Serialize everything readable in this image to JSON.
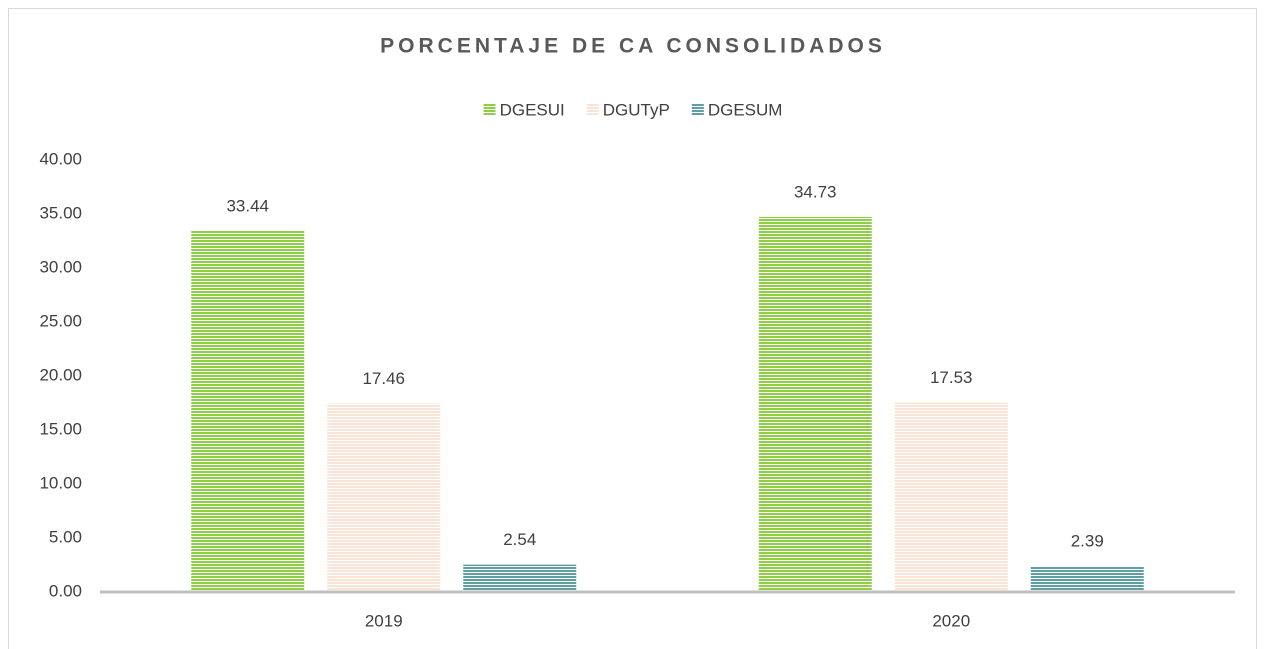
{
  "chart_data": {
    "type": "bar",
    "title": "PORCENTAJE DE CA CONSOLIDADOS",
    "categories": [
      "2019",
      "2020"
    ],
    "series": [
      {
        "name": "DGESUI",
        "color": "#8fcf45",
        "values": [
          33.44,
          34.73
        ]
      },
      {
        "name": "DGUTyP",
        "color": "#fbe3d5",
        "values": [
          17.46,
          17.53
        ]
      },
      {
        "name": "DGESUM",
        "color": "#5f9ea3",
        "values": [
          2.54,
          2.39
        ]
      }
    ],
    "ylim": [
      0,
      40
    ],
    "yticks": [
      {
        "value": 0,
        "label": "0.00"
      },
      {
        "value": 5,
        "label": "5.00"
      },
      {
        "value": 10,
        "label": "10.00"
      },
      {
        "value": 15,
        "label": "15.00"
      },
      {
        "value": 20,
        "label": "20.00"
      },
      {
        "value": 25,
        "label": "25.00"
      },
      {
        "value": 30,
        "label": "30.00"
      },
      {
        "value": 35,
        "label": "35.00"
      },
      {
        "value": 40,
        "label": "40.00"
      }
    ],
    "legend": "top",
    "grid": false
  }
}
